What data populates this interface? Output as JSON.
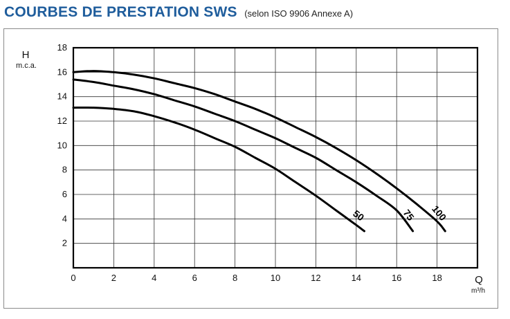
{
  "title": "COURBES DE PRESTATION SWS",
  "subtitle": "(selon ISO 9906 Annexe A)",
  "chart_data": {
    "type": "line",
    "ylabel": "H",
    "yunit": "m.c.a.",
    "xlabel": "Q",
    "xunit": "m³/h",
    "xlim": [
      0,
      20
    ],
    "ylim": [
      0,
      18
    ],
    "xticks": [
      0,
      2,
      4,
      6,
      8,
      10,
      12,
      14,
      16,
      18
    ],
    "yticks": [
      2,
      4,
      6,
      8,
      10,
      12,
      14,
      16,
      18
    ],
    "grid": true,
    "series": [
      {
        "name": "50",
        "x": [
          0,
          1,
          2,
          3,
          4,
          5,
          6,
          7,
          8,
          9,
          10,
          11,
          12,
          13,
          14,
          14.4
        ],
        "y": [
          13.1,
          13.1,
          13.0,
          12.8,
          12.4,
          11.9,
          11.3,
          10.6,
          9.9,
          9.0,
          8.1,
          7.0,
          5.9,
          4.7,
          3.5,
          3.0
        ]
      },
      {
        "name": "75",
        "x": [
          0,
          1,
          2,
          3,
          4,
          5,
          6,
          7,
          8,
          9,
          10,
          11,
          12,
          13,
          14,
          15,
          16,
          16.8
        ],
        "y": [
          15.4,
          15.2,
          14.9,
          14.6,
          14.2,
          13.7,
          13.2,
          12.6,
          12.0,
          11.3,
          10.6,
          9.8,
          9.0,
          8.0,
          7.0,
          5.9,
          4.7,
          3.0
        ]
      },
      {
        "name": "100",
        "x": [
          0,
          1,
          2,
          3,
          4,
          5,
          6,
          7,
          8,
          9,
          10,
          11,
          12,
          13,
          14,
          15,
          16,
          17,
          18,
          18.4
        ],
        "y": [
          16.0,
          16.1,
          16.0,
          15.8,
          15.5,
          15.1,
          14.7,
          14.2,
          13.6,
          13.0,
          12.3,
          11.5,
          10.7,
          9.8,
          8.8,
          7.7,
          6.5,
          5.2,
          3.8,
          3.0
        ]
      }
    ]
  }
}
